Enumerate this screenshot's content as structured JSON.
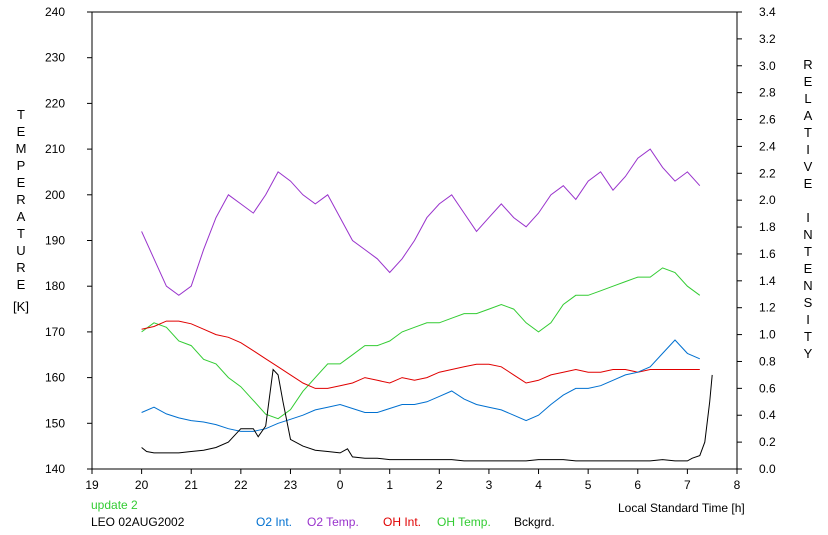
{
  "chart_data": {
    "type": "line",
    "xlabel": "Local Standard Time [h]",
    "ylabel_left": "TEMPERATURE",
    "ylabel_left_unit": "[K]",
    "ylabel_right": "RELATIVE INTENSITY",
    "x_range": [
      19,
      8
    ],
    "x_ticks": [
      "19",
      "20",
      "21",
      "22",
      "23",
      "0",
      "1",
      "2",
      "3",
      "4",
      "5",
      "6",
      "7",
      "8"
    ],
    "ylim_left": [
      140,
      240
    ],
    "y_ticks_left": [
      "140",
      "150",
      "160",
      "170",
      "180",
      "190",
      "200",
      "210",
      "220",
      "230",
      "240"
    ],
    "ylim_right": [
      0.0,
      3.4
    ],
    "y_ticks_right": [
      "0.0",
      "0.2",
      "0.4",
      "0.6",
      "0.8",
      "1.0",
      "1.2",
      "1.4",
      "1.6",
      "1.8",
      "2.0",
      "2.2",
      "2.4",
      "2.6",
      "2.8",
      "3.0",
      "3.2",
      "3.4"
    ],
    "grid": false,
    "legend_position": "bottom",
    "series": [
      {
        "name": "O2 Int.",
        "axis": "right",
        "color": "#0070d0",
        "x": [
          20.0,
          20.25,
          20.5,
          20.75,
          21.0,
          21.25,
          21.5,
          21.75,
          22.0,
          22.25,
          22.5,
          22.75,
          23.0,
          23.25,
          23.5,
          23.75,
          24.0,
          24.25,
          24.5,
          24.75,
          25.0,
          25.25,
          25.5,
          25.75,
          26.0,
          26.25,
          26.5,
          26.75,
          27.0,
          27.25,
          27.5,
          27.75,
          28.0,
          28.25,
          28.5,
          28.75,
          29.0,
          29.25,
          29.5,
          29.75,
          30.0,
          30.25,
          30.5,
          30.75,
          31.0,
          31.25
        ],
        "y": [
          0.42,
          0.46,
          0.41,
          0.38,
          0.36,
          0.35,
          0.33,
          0.3,
          0.28,
          0.28,
          0.3,
          0.34,
          0.37,
          0.4,
          0.44,
          0.46,
          0.48,
          0.45,
          0.42,
          0.42,
          0.45,
          0.48,
          0.48,
          0.5,
          0.54,
          0.58,
          0.52,
          0.48,
          0.46,
          0.44,
          0.4,
          0.36,
          0.4,
          0.48,
          0.55,
          0.6,
          0.6,
          0.62,
          0.66,
          0.7,
          0.72,
          0.76,
          0.86,
          0.96,
          0.86,
          0.82
        ]
      },
      {
        "name": "O2 Temp.",
        "axis": "left",
        "color": "#9933cc",
        "x": [
          20.0,
          20.25,
          20.5,
          20.75,
          21.0,
          21.25,
          21.5,
          21.75,
          22.0,
          22.25,
          22.5,
          22.75,
          23.0,
          23.25,
          23.5,
          23.75,
          24.0,
          24.25,
          24.5,
          24.75,
          25.0,
          25.25,
          25.5,
          25.75,
          26.0,
          26.25,
          26.5,
          26.75,
          27.0,
          27.25,
          27.5,
          27.75,
          28.0,
          28.25,
          28.5,
          28.75,
          29.0,
          29.25,
          29.5,
          29.75,
          30.0,
          30.25,
          30.5,
          30.75,
          31.0,
          31.25
        ],
        "y": [
          192,
          186,
          180,
          178,
          180,
          188,
          195,
          200,
          198,
          196,
          200,
          205,
          203,
          200,
          198,
          200,
          195,
          190,
          188,
          186,
          183,
          186,
          190,
          195,
          198,
          200,
          196,
          192,
          195,
          198,
          195,
          193,
          196,
          200,
          202,
          199,
          203,
          205,
          201,
          204,
          208,
          210,
          206,
          203,
          205,
          202
        ]
      },
      {
        "name": "OH Int.",
        "axis": "right",
        "color": "#e00000",
        "x": [
          20.0,
          20.25,
          20.5,
          20.75,
          21.0,
          21.25,
          21.5,
          21.75,
          22.0,
          22.25,
          22.5,
          22.75,
          23.0,
          23.25,
          23.5,
          23.75,
          24.0,
          24.25,
          24.5,
          24.75,
          25.0,
          25.25,
          25.5,
          25.75,
          26.0,
          26.25,
          26.5,
          26.75,
          27.0,
          27.25,
          27.5,
          27.75,
          28.0,
          28.25,
          28.5,
          28.75,
          29.0,
          29.25,
          29.5,
          29.75,
          30.0,
          30.25,
          30.5,
          30.75,
          31.0,
          31.25
        ],
        "y": [
          1.04,
          1.06,
          1.1,
          1.1,
          1.08,
          1.04,
          1.0,
          0.98,
          0.94,
          0.88,
          0.82,
          0.76,
          0.7,
          0.64,
          0.6,
          0.6,
          0.62,
          0.64,
          0.68,
          0.66,
          0.64,
          0.68,
          0.66,
          0.68,
          0.72,
          0.74,
          0.76,
          0.78,
          0.78,
          0.76,
          0.7,
          0.64,
          0.66,
          0.7,
          0.72,
          0.74,
          0.72,
          0.72,
          0.74,
          0.74,
          0.72,
          0.74,
          0.74,
          0.74,
          0.74,
          0.74
        ]
      },
      {
        "name": "OH Temp.",
        "axis": "left",
        "color": "#33cc33",
        "x": [
          20.0,
          20.25,
          20.5,
          20.75,
          21.0,
          21.25,
          21.5,
          21.75,
          22.0,
          22.25,
          22.5,
          22.75,
          23.0,
          23.25,
          23.5,
          23.75,
          24.0,
          24.25,
          24.5,
          24.75,
          25.0,
          25.25,
          25.5,
          25.75,
          26.0,
          26.25,
          26.5,
          26.75,
          27.0,
          27.25,
          27.5,
          27.75,
          28.0,
          28.25,
          28.5,
          28.75,
          29.0,
          29.25,
          29.5,
          29.75,
          30.0,
          30.25,
          30.5,
          30.75,
          31.0,
          31.25
        ],
        "y": [
          170,
          172,
          171,
          168,
          167,
          164,
          163,
          160,
          158,
          155,
          152,
          151,
          153,
          157,
          160,
          163,
          163,
          165,
          167,
          167,
          168,
          170,
          171,
          172,
          172,
          173,
          174,
          174,
          175,
          176,
          175,
          172,
          170,
          172,
          176,
          178,
          178,
          179,
          180,
          181,
          182,
          182,
          184,
          183,
          180,
          178
        ]
      },
      {
        "name": "Bckgrd.",
        "axis": "right",
        "color": "#000000",
        "x": [
          20.0,
          20.1,
          20.25,
          20.5,
          20.75,
          21.0,
          21.25,
          21.5,
          21.75,
          22.0,
          22.25,
          22.35,
          22.5,
          22.65,
          22.75,
          22.85,
          23.0,
          23.25,
          23.5,
          23.75,
          24.0,
          24.15,
          24.25,
          24.5,
          24.75,
          25.0,
          25.25,
          25.5,
          25.75,
          26.0,
          26.25,
          26.5,
          26.75,
          27.0,
          27.25,
          27.5,
          27.75,
          28.0,
          28.25,
          28.5,
          28.75,
          29.0,
          29.25,
          29.5,
          29.75,
          30.0,
          30.25,
          30.5,
          30.75,
          31.0,
          31.1,
          31.25,
          31.35,
          31.45,
          31.5
        ],
        "y": [
          0.16,
          0.13,
          0.12,
          0.12,
          0.12,
          0.13,
          0.14,
          0.16,
          0.2,
          0.3,
          0.3,
          0.24,
          0.32,
          0.74,
          0.7,
          0.5,
          0.22,
          0.17,
          0.14,
          0.13,
          0.12,
          0.15,
          0.09,
          0.08,
          0.08,
          0.07,
          0.07,
          0.07,
          0.07,
          0.07,
          0.07,
          0.06,
          0.06,
          0.06,
          0.06,
          0.06,
          0.06,
          0.07,
          0.07,
          0.07,
          0.06,
          0.06,
          0.06,
          0.06,
          0.06,
          0.06,
          0.06,
          0.07,
          0.06,
          0.06,
          0.08,
          0.1,
          0.2,
          0.5,
          0.7
        ]
      }
    ]
  },
  "labels": {
    "update": "update 2",
    "location": "LEO 02AUG2002",
    "legend_o2int": "O2 Int.",
    "legend_o2temp": "O2 Temp.",
    "legend_ohint": "OH Int.",
    "legend_ohtemp": "OH Temp.",
    "legend_bckgrd": "Bckgrd."
  },
  "colors": {
    "update_text": "#33cc33",
    "o2int": "#0070d0",
    "o2temp": "#9933cc",
    "ohint": "#e00000",
    "ohtemp": "#33cc33",
    "bckgrd": "#000000"
  }
}
